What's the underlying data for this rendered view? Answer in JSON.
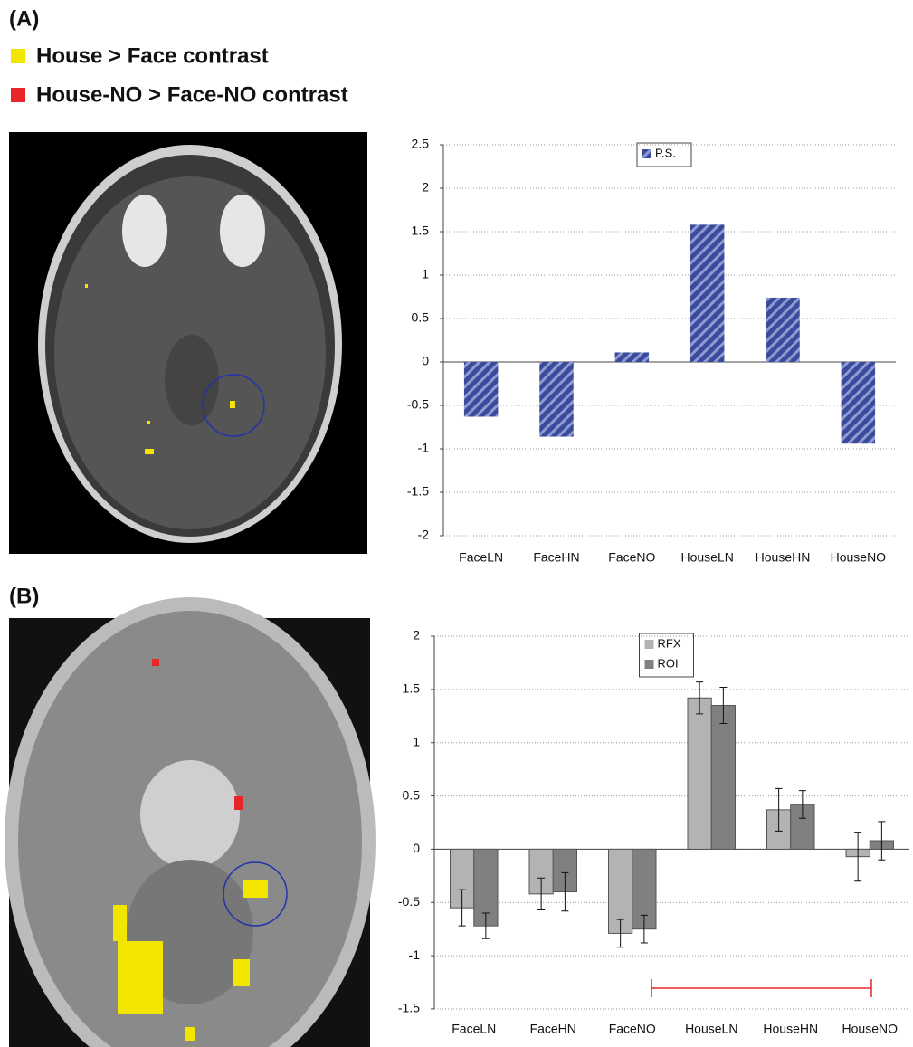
{
  "panel_labels": [
    "(A)",
    "(B)"
  ],
  "contrast_legend": [
    {
      "name": "House > Face contrast",
      "color": "#f2e600"
    },
    {
      "name": "House-NO > Face-NO contrast",
      "color": "#e8262a"
    }
  ],
  "chart_data": [
    {
      "type": "bar",
      "categories": [
        "FaceLN",
        "FaceHN",
        "FaceNO",
        "HouseLN",
        "HouseHN",
        "HouseNO"
      ],
      "series": [
        {
          "name": "P.S.",
          "color": "#3a4a9c",
          "hatch": true,
          "values": [
            -0.63,
            -0.86,
            0.11,
            1.58,
            0.74,
            -0.94
          ]
        }
      ],
      "ylim": [
        -2,
        2.5
      ],
      "yticks": [
        -2,
        -1.5,
        -1,
        -0.5,
        0,
        0.5,
        1,
        1.5,
        2,
        2.5
      ],
      "grid": true,
      "legend": "top"
    },
    {
      "type": "bar",
      "categories": [
        "FaceLN",
        "FaceHN",
        "FaceNO",
        "HouseLN",
        "HouseHN",
        "HouseNO"
      ],
      "series": [
        {
          "name": "RFX",
          "color": "#b3b3b3",
          "values": [
            -0.55,
            -0.42,
            -0.79,
            1.42,
            0.37,
            -0.07
          ],
          "errors": [
            0.17,
            0.15,
            0.13,
            0.15,
            0.2,
            0.23
          ]
        },
        {
          "name": "ROI",
          "color": "#808080",
          "values": [
            -0.72,
            -0.4,
            -0.75,
            1.35,
            0.42,
            0.08
          ],
          "errors": [
            0.12,
            0.18,
            0.13,
            0.17,
            0.13,
            0.18
          ]
        }
      ],
      "ylim": [
        -1.5,
        2
      ],
      "yticks": [
        -1.5,
        -1,
        -0.5,
        0,
        0.5,
        1,
        1.5,
        2
      ],
      "grid": true,
      "legend": "top"
    }
  ]
}
